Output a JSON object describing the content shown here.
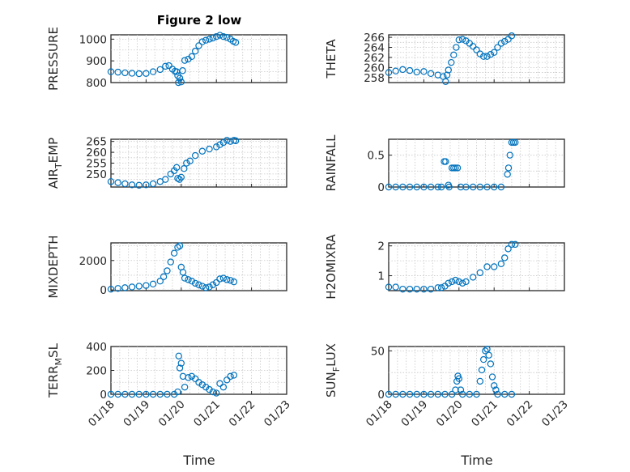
{
  "title": "Figure 2 low",
  "xlabels": [
    "Time",
    "Time"
  ],
  "chart_data": [
    {
      "type": "scatter",
      "ylabel": "PRESSURE",
      "ylim": [
        800,
        1020
      ],
      "yticks": [
        800,
        900,
        1000
      ],
      "xlim": [
        0,
        5
      ],
      "xticks": [
        "01/18",
        "01/19",
        "01/20",
        "01/21",
        "01/22",
        "01/23"
      ],
      "show_xticks": false,
      "points": [
        [
          0.0,
          850
        ],
        [
          0.2,
          848
        ],
        [
          0.4,
          845
        ],
        [
          0.6,
          843
        ],
        [
          0.8,
          841
        ],
        [
          1.0,
          842
        ],
        [
          1.2,
          850
        ],
        [
          1.4,
          860
        ],
        [
          1.55,
          875
        ],
        [
          1.65,
          878
        ],
        [
          1.75,
          862
        ],
        [
          1.82,
          852
        ],
        [
          1.87,
          850
        ],
        [
          1.9,
          832
        ],
        [
          1.92,
          800
        ],
        [
          1.96,
          820
        ],
        [
          2.0,
          803
        ],
        [
          2.04,
          855
        ],
        [
          2.1,
          902
        ],
        [
          2.2,
          908
        ],
        [
          2.3,
          920
        ],
        [
          2.4,
          945
        ],
        [
          2.5,
          970
        ],
        [
          2.6,
          988
        ],
        [
          2.7,
          995
        ],
        [
          2.8,
          1000
        ],
        [
          2.9,
          1005
        ],
        [
          3.0,
          1012
        ],
        [
          3.1,
          1018
        ],
        [
          3.2,
          1012
        ],
        [
          3.3,
          1008
        ],
        [
          3.4,
          1000
        ],
        [
          3.48,
          990
        ],
        [
          3.55,
          985
        ]
      ]
    },
    {
      "type": "scatter",
      "ylabel": "THETA",
      "ylim": [
        257,
        266.5
      ],
      "yticks": [
        258,
        260,
        262,
        264,
        266
      ],
      "xlim": [
        0,
        5
      ],
      "xticks": [
        "01/18",
        "01/19",
        "01/20",
        "01/21",
        "01/22",
        "01/23"
      ],
      "show_xticks": false,
      "points": [
        [
          0.0,
          259.0
        ],
        [
          0.2,
          259.3
        ],
        [
          0.4,
          259.6
        ],
        [
          0.6,
          259.4
        ],
        [
          0.8,
          259.1
        ],
        [
          1.0,
          259.2
        ],
        [
          1.2,
          258.8
        ],
        [
          1.4,
          258.5
        ],
        [
          1.55,
          258.2
        ],
        [
          1.62,
          257.2
        ],
        [
          1.66,
          258.5
        ],
        [
          1.7,
          259.5
        ],
        [
          1.78,
          261.0
        ],
        [
          1.85,
          262.5
        ],
        [
          1.92,
          264.0
        ],
        [
          2.0,
          265.5
        ],
        [
          2.1,
          265.6
        ],
        [
          2.2,
          265.3
        ],
        [
          2.3,
          264.8
        ],
        [
          2.4,
          264.2
        ],
        [
          2.5,
          263.5
        ],
        [
          2.6,
          262.7
        ],
        [
          2.7,
          262.2
        ],
        [
          2.8,
          262.2
        ],
        [
          2.9,
          262.6
        ],
        [
          3.0,
          263.0
        ],
        [
          3.1,
          264.0
        ],
        [
          3.2,
          264.8
        ],
        [
          3.3,
          265.2
        ],
        [
          3.4,
          265.6
        ],
        [
          3.5,
          266.3
        ]
      ]
    },
    {
      "type": "scatter",
      "ylabel": "AIR_TEMP",
      "ylim": [
        244,
        266
      ],
      "yticks": [
        250,
        255,
        260,
        265
      ],
      "xlim": [
        0,
        5
      ],
      "xticks": [
        "01/18",
        "01/19",
        "01/20",
        "01/21",
        "01/22",
        "01/23"
      ],
      "show_xticks": false,
      "points": [
        [
          0.0,
          246.5
        ],
        [
          0.2,
          246.0
        ],
        [
          0.4,
          245.5
        ],
        [
          0.6,
          245.0
        ],
        [
          0.8,
          244.8
        ],
        [
          1.0,
          245.0
        ],
        [
          1.2,
          245.5
        ],
        [
          1.4,
          246.5
        ],
        [
          1.55,
          247.5
        ],
        [
          1.7,
          250.0
        ],
        [
          1.8,
          251.5
        ],
        [
          1.87,
          253.0
        ],
        [
          1.9,
          248.0
        ],
        [
          1.95,
          247.5
        ],
        [
          2.0,
          248.5
        ],
        [
          2.08,
          252.5
        ],
        [
          2.15,
          255.0
        ],
        [
          2.25,
          256.0
        ],
        [
          2.4,
          258.5
        ],
        [
          2.6,
          260.5
        ],
        [
          2.8,
          261.5
        ],
        [
          3.0,
          262.5
        ],
        [
          3.1,
          263.5
        ],
        [
          3.2,
          264.5
        ],
        [
          3.3,
          265.5
        ],
        [
          3.4,
          265.0
        ],
        [
          3.5,
          265.5
        ],
        [
          3.55,
          265.3
        ]
      ]
    },
    {
      "type": "scatter",
      "ylabel": "RAINFALL",
      "ylim": [
        0,
        0.75
      ],
      "yticks": [
        0,
        0.5
      ],
      "xlim": [
        0,
        5
      ],
      "xticks": [
        "01/18",
        "01/19",
        "01/20",
        "01/21",
        "01/22",
        "01/23"
      ],
      "show_xticks": false,
      "points": [
        [
          0.0,
          0
        ],
        [
          0.2,
          0
        ],
        [
          0.4,
          0
        ],
        [
          0.6,
          0
        ],
        [
          0.8,
          0
        ],
        [
          1.0,
          0
        ],
        [
          1.2,
          0
        ],
        [
          1.4,
          0
        ],
        [
          1.5,
          0
        ],
        [
          1.58,
          0.4
        ],
        [
          1.62,
          0.4
        ],
        [
          1.7,
          0.03
        ],
        [
          1.72,
          0
        ],
        [
          1.8,
          0.3
        ],
        [
          1.85,
          0.3
        ],
        [
          1.9,
          0.3
        ],
        [
          1.96,
          0.3
        ],
        [
          2.05,
          0
        ],
        [
          2.2,
          0
        ],
        [
          2.4,
          0
        ],
        [
          2.6,
          0
        ],
        [
          2.8,
          0
        ],
        [
          3.0,
          0
        ],
        [
          3.2,
          0
        ],
        [
          3.38,
          0.2
        ],
        [
          3.41,
          0.3
        ],
        [
          3.45,
          0.5
        ],
        [
          3.5,
          0.7
        ],
        [
          3.55,
          0.7
        ],
        [
          3.6,
          0.7
        ]
      ]
    },
    {
      "type": "scatter",
      "ylabel": "MIXDEPTH",
      "ylim": [
        -50,
        3200
      ],
      "yticks": [
        0,
        2000
      ],
      "xlim": [
        0,
        5
      ],
      "xticks": [
        "01/18",
        "01/19",
        "01/20",
        "01/21",
        "01/22",
        "01/23"
      ],
      "show_xticks": false,
      "points": [
        [
          0.0,
          50
        ],
        [
          0.2,
          100
        ],
        [
          0.4,
          150
        ],
        [
          0.6,
          200
        ],
        [
          0.8,
          250
        ],
        [
          1.0,
          300
        ],
        [
          1.2,
          400
        ],
        [
          1.4,
          600
        ],
        [
          1.5,
          900
        ],
        [
          1.6,
          1300
        ],
        [
          1.7,
          1900
        ],
        [
          1.8,
          2500
        ],
        [
          1.9,
          2900
        ],
        [
          1.96,
          3000
        ],
        [
          2.0,
          1550
        ],
        [
          2.05,
          1200
        ],
        [
          2.1,
          800
        ],
        [
          2.2,
          700
        ],
        [
          2.3,
          600
        ],
        [
          2.4,
          450
        ],
        [
          2.5,
          350
        ],
        [
          2.6,
          250
        ],
        [
          2.7,
          150
        ],
        [
          2.8,
          200
        ],
        [
          2.9,
          350
        ],
        [
          3.0,
          500
        ],
        [
          3.1,
          750
        ],
        [
          3.2,
          800
        ],
        [
          3.3,
          700
        ],
        [
          3.4,
          650
        ],
        [
          3.5,
          550
        ]
      ]
    },
    {
      "type": "scatter",
      "ylabel": "H2OMIXRA",
      "ylim": [
        0.5,
        2.1
      ],
      "yticks": [
        1,
        2
      ],
      "xlim": [
        0,
        5
      ],
      "xticks": [
        "01/18",
        "01/19",
        "01/20",
        "01/21",
        "01/22",
        "01/23"
      ],
      "show_xticks": false,
      "points": [
        [
          0.0,
          0.62
        ],
        [
          0.2,
          0.62
        ],
        [
          0.4,
          0.55
        ],
        [
          0.6,
          0.55
        ],
        [
          0.8,
          0.55
        ],
        [
          1.0,
          0.55
        ],
        [
          1.2,
          0.55
        ],
        [
          1.4,
          0.6
        ],
        [
          1.5,
          0.6
        ],
        [
          1.6,
          0.65
        ],
        [
          1.7,
          0.75
        ],
        [
          1.8,
          0.8
        ],
        [
          1.9,
          0.85
        ],
        [
          2.0,
          0.8
        ],
        [
          2.1,
          0.75
        ],
        [
          2.2,
          0.8
        ],
        [
          2.4,
          0.95
        ],
        [
          2.6,
          1.1
        ],
        [
          2.8,
          1.3
        ],
        [
          3.0,
          1.3
        ],
        [
          3.2,
          1.4
        ],
        [
          3.3,
          1.6
        ],
        [
          3.4,
          1.9
        ],
        [
          3.5,
          2.05
        ],
        [
          3.6,
          2.05
        ]
      ]
    },
    {
      "type": "scatter",
      "ylabel": "TERR_MSL",
      "ylim": [
        0,
        400
      ],
      "yticks": [
        0,
        200,
        400
      ],
      "xlim": [
        0,
        5
      ],
      "xticks": [
        "01/18",
        "01/19",
        "01/20",
        "01/21",
        "01/22",
        "01/23"
      ],
      "show_xticks": true,
      "points": [
        [
          0.0,
          0
        ],
        [
          0.2,
          0
        ],
        [
          0.4,
          0
        ],
        [
          0.6,
          0
        ],
        [
          0.8,
          0
        ],
        [
          1.0,
          0
        ],
        [
          1.2,
          0
        ],
        [
          1.4,
          0
        ],
        [
          1.6,
          0
        ],
        [
          1.8,
          0
        ],
        [
          1.9,
          20
        ],
        [
          1.93,
          320
        ],
        [
          1.96,
          220
        ],
        [
          2.0,
          260
        ],
        [
          2.05,
          150
        ],
        [
          2.1,
          60
        ],
        [
          2.2,
          140
        ],
        [
          2.3,
          150
        ],
        [
          2.4,
          130
        ],
        [
          2.5,
          100
        ],
        [
          2.6,
          80
        ],
        [
          2.7,
          60
        ],
        [
          2.8,
          40
        ],
        [
          2.9,
          20
        ],
        [
          3.0,
          10
        ],
        [
          3.1,
          90
        ],
        [
          3.2,
          60
        ],
        [
          3.3,
          120
        ],
        [
          3.4,
          150
        ],
        [
          3.5,
          160
        ]
      ]
    },
    {
      "type": "scatter",
      "ylabel": "SUN_FLUX",
      "ylim": [
        0,
        55
      ],
      "yticks": [
        0,
        50
      ],
      "xlim": [
        0,
        5
      ],
      "xticks": [
        "01/18",
        "01/19",
        "01/20",
        "01/21",
        "01/22",
        "01/23"
      ],
      "show_xticks": true,
      "points": [
        [
          0.0,
          0
        ],
        [
          0.2,
          0
        ],
        [
          0.4,
          0
        ],
        [
          0.6,
          0
        ],
        [
          0.8,
          0
        ],
        [
          1.0,
          0
        ],
        [
          1.2,
          0
        ],
        [
          1.4,
          0
        ],
        [
          1.6,
          0
        ],
        [
          1.8,
          0
        ],
        [
          1.9,
          5
        ],
        [
          1.94,
          15
        ],
        [
          1.97,
          21
        ],
        [
          2.0,
          18
        ],
        [
          2.05,
          5
        ],
        [
          2.1,
          0
        ],
        [
          2.3,
          0
        ],
        [
          2.5,
          0
        ],
        [
          2.6,
          15
        ],
        [
          2.65,
          28
        ],
        [
          2.7,
          40
        ],
        [
          2.75,
          50
        ],
        [
          2.8,
          52
        ],
        [
          2.85,
          45
        ],
        [
          2.9,
          35
        ],
        [
          2.95,
          20
        ],
        [
          3.0,
          10
        ],
        [
          3.05,
          5
        ],
        [
          3.1,
          0
        ],
        [
          3.3,
          0
        ],
        [
          3.5,
          0
        ]
      ]
    }
  ]
}
